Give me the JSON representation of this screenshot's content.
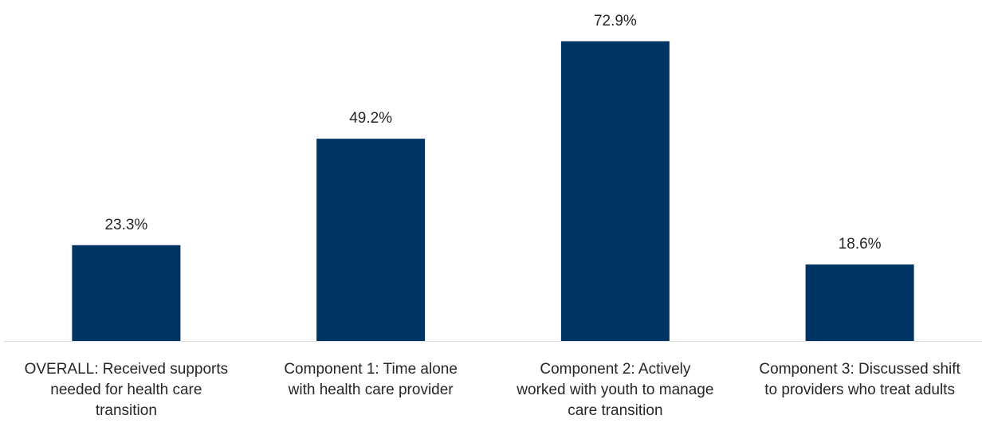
{
  "chart_data": {
    "type": "bar",
    "title": "",
    "xlabel": "",
    "ylabel": "",
    "unit": "%",
    "ylim": [
      0,
      80
    ],
    "grid": false,
    "legend": "none",
    "bar_color": "#003462",
    "axis_color": "#d9d9d9",
    "text_color": "#262626",
    "categories": [
      "OVERALL: Received supports needed for health care transition",
      "Component 1: Time alone with health care provider",
      "Component 2: Actively worked with youth to manage care transition",
      "Component 3: Discussed shift to providers who treat adults"
    ],
    "category_lines": [
      [
        "OVERALL: Received supports",
        "needed for health care",
        "transition"
      ],
      [
        "Component 1: Time alone",
        "with health care provider"
      ],
      [
        "Component 2: Actively",
        "worked with youth to manage",
        "care transition"
      ],
      [
        "Component 3: Discussed shift",
        "to providers who treat adults"
      ]
    ],
    "values": [
      23.3,
      49.2,
      72.9,
      18.6
    ],
    "data_labels": [
      "23.3%",
      "49.2%",
      "72.9%",
      "18.6%"
    ]
  }
}
